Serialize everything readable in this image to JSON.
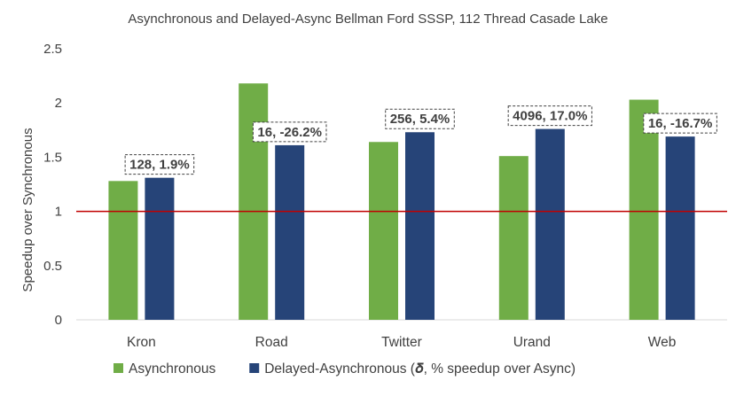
{
  "chart_data": {
    "type": "bar",
    "title": "Asynchronous and Delayed-Async Bellman Ford SSSP, 112 Thread Casade Lake",
    "xlabel": "",
    "ylabel": "Speedup over Synchronous",
    "ylim": [
      0,
      2.5
    ],
    "yticks": [
      "0",
      "0.5",
      "1",
      "1.5",
      "2",
      "2.5"
    ],
    "ytick_values": [
      0,
      0.5,
      1,
      1.5,
      2,
      2.5
    ],
    "grid": false,
    "reference_line": 1,
    "categories": [
      "Kron",
      "Road",
      "Twitter",
      "Urand",
      "Web"
    ],
    "series": [
      {
        "name": "Asynchronous",
        "color": "#70ad47",
        "values": [
          1.28,
          2.18,
          1.64,
          1.51,
          2.03
        ]
      },
      {
        "name": "Delayed-Asynchronous (𝜹, % speedup over Async)",
        "color": "#264478",
        "values": [
          1.31,
          1.61,
          1.73,
          1.76,
          1.69
        ]
      }
    ],
    "annotations": [
      "128, 1.9%",
      "16, -26.2%",
      "256, 5.4%",
      "4096, 17.0%",
      "16, -16.7%"
    ],
    "legend_position": "bottom",
    "reference_line_color": "#c00000"
  }
}
